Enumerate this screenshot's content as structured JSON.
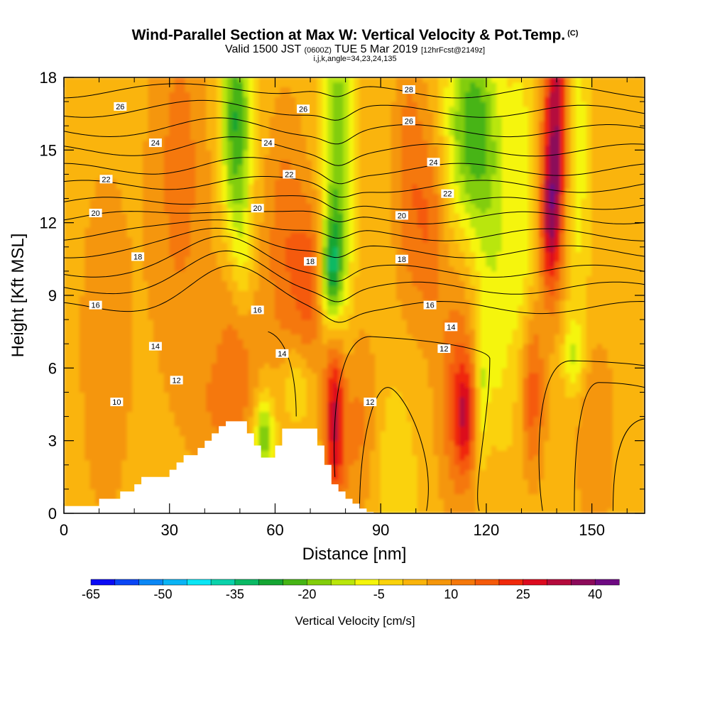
{
  "title": {
    "main": "Wind-Parallel Section at Max W: Vertical Velocity & Pot.Temp.",
    "copyright": "(C)",
    "valid_a": "Valid 1500 JST",
    "valid_zulu": "(0600Z)",
    "valid_b": "TUE 5 Mar 2019",
    "fcst": "[12hrFcst@2149z]",
    "params": "i,j,k,angle=34,23,24,135"
  },
  "colors": {
    "ramp": [
      "#0a0af5",
      "#0a46f5",
      "#0a87f5",
      "#0ab4f5",
      "#0ae6f5",
      "#0ad2aa",
      "#0ab964",
      "#14a532",
      "#46b414",
      "#82cd0a",
      "#b9e60a",
      "#f5f50a",
      "#fad20a",
      "#fab40a",
      "#f5960a",
      "#f5780a",
      "#f55a0a",
      "#f0280a",
      "#dc0a1e",
      "#b40a3c",
      "#8c0a5a",
      "#6e0a82"
    ],
    "terrain": "#ffffff",
    "contour": "#000000"
  },
  "chart_data": {
    "type": "heatmap",
    "xlabel": "Distance [nm]",
    "ylabel": "Height [Kft MSL]",
    "xlim": [
      0,
      165
    ],
    "ylim": [
      0,
      18
    ],
    "xticks": [
      "0",
      "30",
      "60",
      "90",
      "120",
      "150"
    ],
    "yticks": [
      "0",
      "3",
      "6",
      "9",
      "12",
      "15",
      "18"
    ],
    "colorbar": {
      "label": "Vertical Velocity [cm/s]",
      "range": [
        -65,
        50
      ],
      "step": 5,
      "ticks": [
        "-65",
        "-50",
        "-35",
        "-20",
        "-5",
        "10",
        "25",
        "40"
      ]
    },
    "terrain_profile": {
      "x": [
        0,
        10,
        10,
        16,
        16,
        20,
        20,
        22,
        22,
        30,
        30,
        32,
        32,
        34,
        34,
        38,
        38,
        40,
        40,
        42,
        42,
        44,
        44,
        46,
        46,
        48,
        48,
        52,
        52,
        54,
        54,
        56,
        56,
        60,
        60,
        62,
        62,
        66,
        66,
        72,
        72,
        74,
        74,
        76,
        76,
        78,
        78,
        80,
        80,
        82,
        82,
        84,
        84,
        86,
        86,
        88,
        88,
        165
      ],
      "y": [
        0.3,
        0.3,
        0.6,
        0.6,
        0.9,
        0.9,
        1.2,
        1.2,
        1.5,
        1.5,
        1.8,
        1.8,
        2.1,
        2.1,
        2.4,
        2.4,
        2.7,
        2.7,
        3.0,
        3.0,
        3.3,
        3.3,
        3.6,
        3.6,
        3.8,
        3.8,
        3.8,
        3.8,
        3.3,
        3.3,
        2.8,
        2.8,
        2.3,
        2.3,
        2.8,
        2.8,
        3.5,
        3.5,
        3.5,
        3.5,
        2.8,
        2.8,
        2.0,
        2.0,
        1.2,
        1.2,
        0.9,
        0.9,
        0.6,
        0.6,
        0.4,
        0.4,
        0.2,
        0.2,
        0.05,
        0.05,
        0,
        0
      ]
    },
    "w_features": [
      {
        "x": 33,
        "y": 14,
        "sx": 6,
        "sy": 6,
        "w": 10
      },
      {
        "x": 49,
        "y": 16,
        "sx": 3,
        "sy": 3.5,
        "w": -28
      },
      {
        "x": 51,
        "y": 10,
        "sx": 2.5,
        "sy": 2,
        "w": -12
      },
      {
        "x": 50,
        "y": 8.5,
        "sx": 4,
        "sy": 3,
        "w": 12
      },
      {
        "x": 57,
        "y": 3.2,
        "sx": 2,
        "sy": 1.2,
        "w": -22
      },
      {
        "x": 45,
        "y": 4.5,
        "sx": 6,
        "sy": 2,
        "w": 8
      },
      {
        "x": 63,
        "y": 11,
        "sx": 4,
        "sy": 4,
        "w": 12
      },
      {
        "x": 70,
        "y": 9.5,
        "sx": 3,
        "sy": 2.5,
        "w": 14
      },
      {
        "x": 78,
        "y": 14.5,
        "sx": 3,
        "sy": 5,
        "w": -22
      },
      {
        "x": 76,
        "y": 10,
        "sx": 2,
        "sy": 1.5,
        "w": -25
      },
      {
        "x": 66,
        "y": 5.3,
        "sx": 3,
        "sy": 1.2,
        "w": -10
      },
      {
        "x": 77,
        "y": 4,
        "sx": 2,
        "sy": 2.5,
        "w": 30
      },
      {
        "x": 84,
        "y": 3.5,
        "sx": 4,
        "sy": 3,
        "w": 10
      },
      {
        "x": 93,
        "y": 1.5,
        "sx": 5,
        "sy": 3,
        "w": -6
      },
      {
        "x": 98,
        "y": 14,
        "sx": 3,
        "sy": 4,
        "w": 11
      },
      {
        "x": 104,
        "y": 12,
        "sx": 3,
        "sy": 3,
        "w": 12
      },
      {
        "x": 116,
        "y": 16,
        "sx": 5,
        "sy": 3,
        "w": -25
      },
      {
        "x": 122,
        "y": 11,
        "sx": 4,
        "sy": 4,
        "w": -10
      },
      {
        "x": 112,
        "y": 5,
        "sx": 4,
        "sy": 3.5,
        "w": 14
      },
      {
        "x": 114,
        "y": 4,
        "sx": 2,
        "sy": 1.5,
        "w": 18
      },
      {
        "x": 119,
        "y": 5,
        "sx": 1.2,
        "sy": 2,
        "w": -12
      },
      {
        "x": 123,
        "y": 6,
        "sx": 2,
        "sy": 2,
        "w": -4
      },
      {
        "x": 130,
        "y": 12,
        "sx": 3,
        "sy": 6,
        "w": -10
      },
      {
        "x": 140,
        "y": 16,
        "sx": 2.5,
        "sy": 4,
        "w": 35
      },
      {
        "x": 138,
        "y": 12,
        "sx": 2,
        "sy": 2,
        "w": 20
      },
      {
        "x": 133,
        "y": 5,
        "sx": 2.5,
        "sy": 2.5,
        "w": 18
      },
      {
        "x": 145,
        "y": 15,
        "sx": 3,
        "sy": 5,
        "w": -12
      },
      {
        "x": 145,
        "y": 6.5,
        "sx": 2,
        "sy": 1,
        "w": -12
      },
      {
        "x": 151,
        "y": 3,
        "sx": 4,
        "sy": 3,
        "w": 8
      },
      {
        "x": 12,
        "y": 7,
        "sx": 6,
        "sy": 6,
        "w": 6
      },
      {
        "x": 160,
        "y": 13,
        "sx": 4,
        "sy": 4,
        "w": 2
      }
    ],
    "theta_contours": [
      {
        "z": 8.5,
        "dz": 1.5
      },
      {
        "z": 9.3,
        "dz": 1.3
      },
      {
        "z": 10.0,
        "dz": 1.3
      },
      {
        "z": 10.8,
        "dz": 1.0
      },
      {
        "z": 11.5,
        "dz": 0.8
      },
      {
        "z": 12.2,
        "dz": 0.5
      },
      {
        "z": 12.8,
        "dz": 0.3
      },
      {
        "z": 13.5,
        "dz": 0.3
      },
      {
        "z": 14.2,
        "dz": 0.3
      },
      {
        "z": 15.0,
        "dz": 0.3
      },
      {
        "z": 15.8,
        "dz": 0.3
      },
      {
        "z": 16.6,
        "dz": 0.3
      },
      {
        "z": 17.4,
        "dz": 0.3
      }
    ],
    "contour_labels": [
      {
        "text": "26",
        "x": 16,
        "y": 16.8
      },
      {
        "text": "24",
        "x": 26,
        "y": 15.3
      },
      {
        "text": "22",
        "x": 12,
        "y": 13.8
      },
      {
        "text": "20",
        "x": 9,
        "y": 12.4
      },
      {
        "text": "18",
        "x": 21,
        "y": 10.6
      },
      {
        "text": "16",
        "x": 9,
        "y": 8.6
      },
      {
        "text": "14",
        "x": 26,
        "y": 6.9
      },
      {
        "text": "12",
        "x": 32,
        "y": 5.5
      },
      {
        "text": "10",
        "x": 15,
        "y": 4.6
      },
      {
        "text": "26",
        "x": 68,
        "y": 16.7
      },
      {
        "text": "24",
        "x": 58,
        "y": 15.3
      },
      {
        "text": "22",
        "x": 64,
        "y": 14.0
      },
      {
        "text": "20",
        "x": 55,
        "y": 12.6
      },
      {
        "text": "18",
        "x": 70,
        "y": 10.4
      },
      {
        "text": "16",
        "x": 55,
        "y": 8.4
      },
      {
        "text": "14",
        "x": 62,
        "y": 6.6
      },
      {
        "text": "12",
        "x": 87,
        "y": 4.6
      },
      {
        "text": "28",
        "x": 98,
        "y": 17.5
      },
      {
        "text": "26",
        "x": 98,
        "y": 16.2
      },
      {
        "text": "24",
        "x": 105,
        "y": 14.5
      },
      {
        "text": "22",
        "x": 109,
        "y": 13.2
      },
      {
        "text": "20",
        "x": 96,
        "y": 12.3
      },
      {
        "text": "18",
        "x": 96,
        "y": 10.5
      },
      {
        "text": "16",
        "x": 104,
        "y": 8.6
      },
      {
        "text": "14",
        "x": 110,
        "y": 7.7
      },
      {
        "text": "12",
        "x": 108,
        "y": 6.8
      }
    ]
  }
}
